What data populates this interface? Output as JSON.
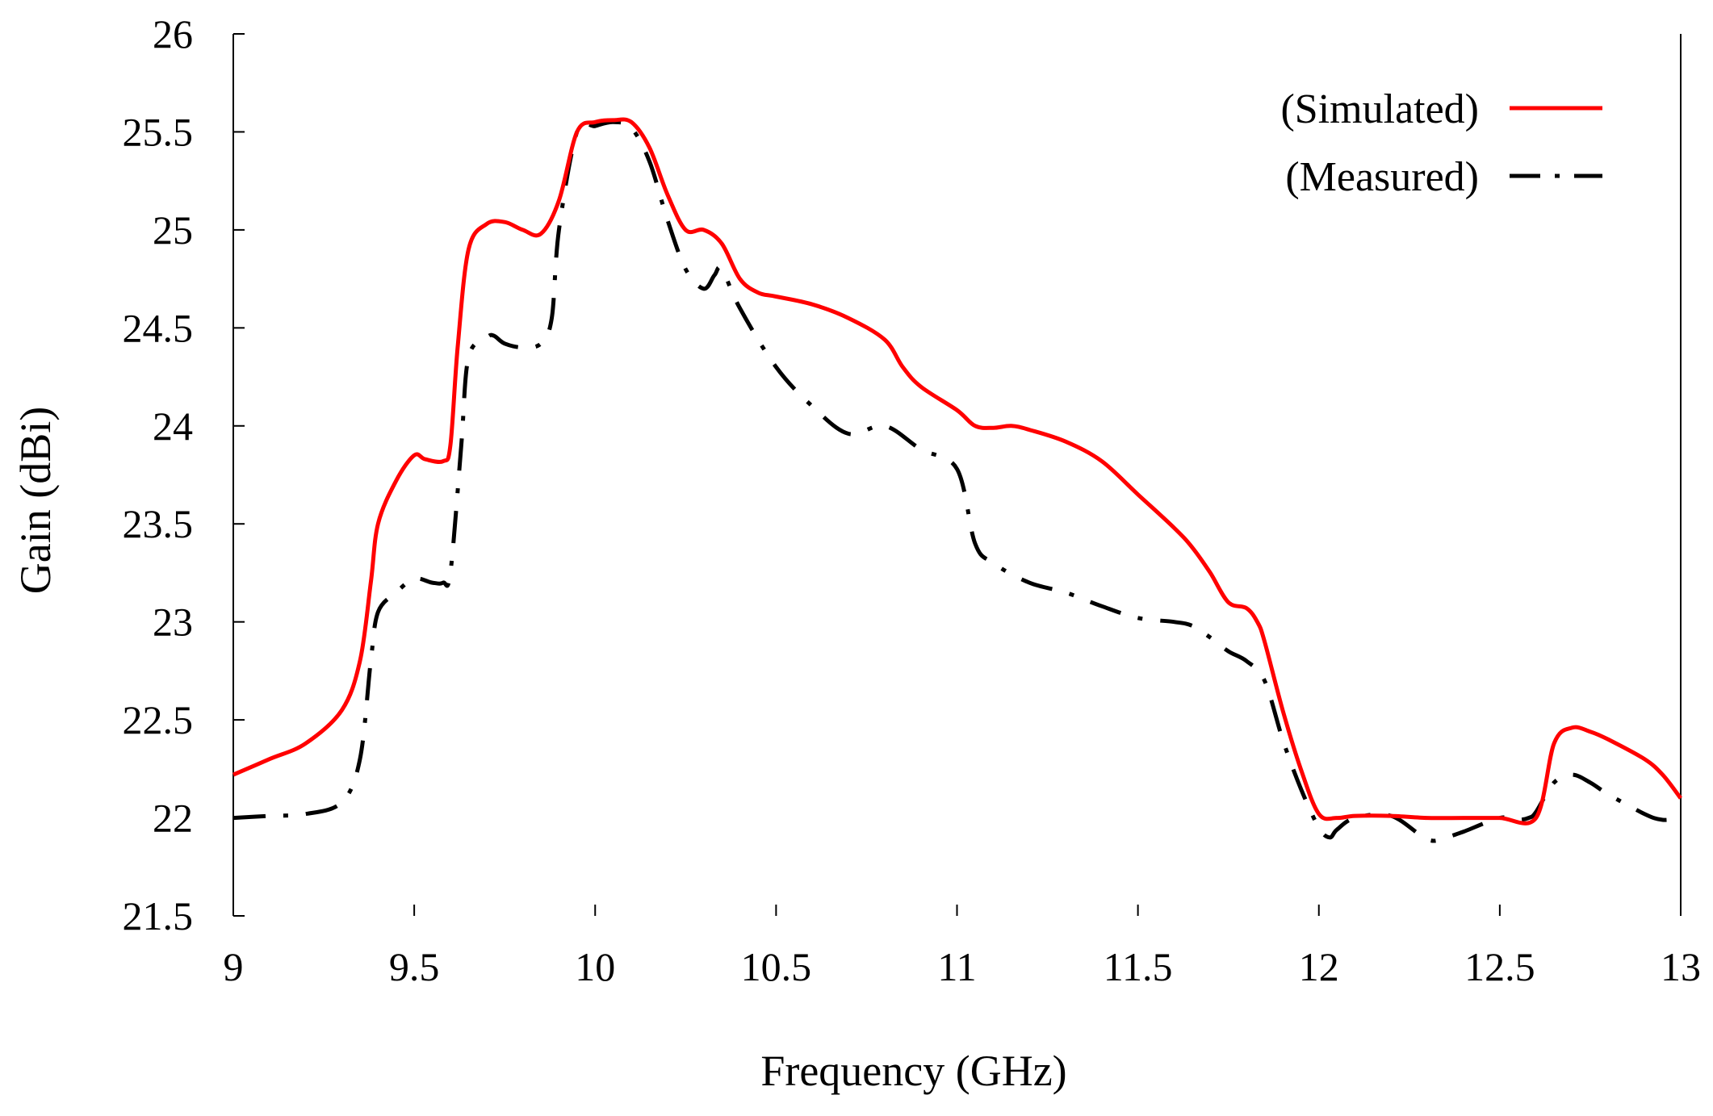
{
  "chart_data": {
    "type": "line",
    "xlabel": "Frequency (GHz)",
    "ylabel": "Gain  (dBi)",
    "xlim": [
      9,
      13
    ],
    "ylim": [
      21.5,
      26
    ],
    "xticks": [
      9,
      9.5,
      10,
      10.5,
      11,
      11.5,
      12,
      12.5,
      13
    ],
    "xtick_labels": [
      "9",
      "9.5",
      "10",
      "10.5",
      "11",
      "11.5",
      "12",
      "12.5",
      "13"
    ],
    "yticks": [
      21.5,
      22,
      22.5,
      23,
      23.5,
      24,
      24.5,
      25,
      25.5,
      26
    ],
    "ytick_labels": [
      "21.5",
      "22",
      "22.5",
      "23",
      "23.5",
      "24",
      "24.5",
      "25",
      "25.5",
      "26"
    ],
    "grid": false,
    "legend_position": "top-right",
    "series": [
      {
        "name": "(Simulated)",
        "color": "#ff0000",
        "style": "solid",
        "x": [
          9.0,
          9.1,
          9.2,
          9.3,
          9.35,
          9.38,
          9.4,
          9.45,
          9.5,
          9.53,
          9.58,
          9.6,
          9.62,
          9.65,
          9.7,
          9.75,
          9.8,
          9.85,
          9.9,
          9.95,
          10.0,
          10.05,
          10.1,
          10.15,
          10.2,
          10.25,
          10.3,
          10.35,
          10.4,
          10.45,
          10.5,
          10.6,
          10.7,
          10.8,
          10.85,
          10.9,
          11.0,
          11.05,
          11.1,
          11.15,
          11.2,
          11.3,
          11.4,
          11.5,
          11.6,
          11.65,
          11.7,
          11.75,
          11.8,
          11.83,
          11.85,
          11.9,
          11.95,
          12.0,
          12.05,
          12.1,
          12.2,
          12.3,
          12.4,
          12.5,
          12.6,
          12.65,
          12.7,
          12.75,
          12.8,
          12.9,
          12.95,
          13.0
        ],
        "y": [
          22.22,
          22.3,
          22.38,
          22.55,
          22.8,
          23.2,
          23.5,
          23.72,
          23.85,
          23.83,
          23.82,
          23.9,
          24.4,
          24.9,
          25.03,
          25.04,
          25.0,
          24.98,
          25.15,
          25.5,
          25.55,
          25.56,
          25.55,
          25.42,
          25.18,
          25.0,
          25.0,
          24.93,
          24.75,
          24.68,
          24.66,
          24.62,
          24.55,
          24.44,
          24.3,
          24.2,
          24.08,
          24.0,
          23.99,
          24.0,
          23.98,
          23.92,
          23.82,
          23.65,
          23.48,
          23.38,
          23.25,
          23.1,
          23.07,
          23.0,
          22.9,
          22.55,
          22.25,
          22.02,
          22.0,
          22.01,
          22.01,
          22.0,
          22.0,
          22.0,
          22.0,
          22.38,
          22.46,
          22.44,
          22.4,
          22.3,
          22.22,
          22.1
        ]
      },
      {
        "name": "(Measured)",
        "color": "#000000",
        "style": "dash-dot",
        "x": [
          9.0,
          9.1,
          9.2,
          9.3,
          9.35,
          9.38,
          9.4,
          9.45,
          9.5,
          9.55,
          9.58,
          9.6,
          9.63,
          9.65,
          9.7,
          9.72,
          9.75,
          9.8,
          9.85,
          9.88,
          9.9,
          9.95,
          10.0,
          10.05,
          10.1,
          10.15,
          10.2,
          10.25,
          10.3,
          10.33,
          10.35,
          10.4,
          10.5,
          10.6,
          10.7,
          10.8,
          10.9,
          11.0,
          11.05,
          11.1,
          11.2,
          11.3,
          11.4,
          11.5,
          11.6,
          11.65,
          11.7,
          11.75,
          11.8,
          11.85,
          11.9,
          11.95,
          12.0,
          12.03,
          12.05,
          12.1,
          12.2,
          12.3,
          12.35,
          12.4,
          12.5,
          12.55,
          12.58,
          12.6,
          12.65,
          12.7,
          12.75,
          12.8,
          12.9,
          12.95,
          13.0
        ],
        "y": [
          22.0,
          22.01,
          22.02,
          22.08,
          22.3,
          22.8,
          23.05,
          23.15,
          23.22,
          23.2,
          23.2,
          23.25,
          23.9,
          24.35,
          24.45,
          24.46,
          24.42,
          24.4,
          24.42,
          24.55,
          25.0,
          25.5,
          25.53,
          25.55,
          25.52,
          25.35,
          25.05,
          24.8,
          24.7,
          24.77,
          24.8,
          24.6,
          24.3,
          24.1,
          23.96,
          24.0,
          23.88,
          23.78,
          23.4,
          23.3,
          23.2,
          23.15,
          23.08,
          23.02,
          23.0,
          22.98,
          22.92,
          22.85,
          22.8,
          22.7,
          22.4,
          22.15,
          21.95,
          21.9,
          21.94,
          22.0,
          22.01,
          21.89,
          21.9,
          21.93,
          22.0,
          21.99,
          22.0,
          22.03,
          22.18,
          22.22,
          22.18,
          22.12,
          22.02,
          21.99,
          22.0
        ]
      }
    ]
  }
}
